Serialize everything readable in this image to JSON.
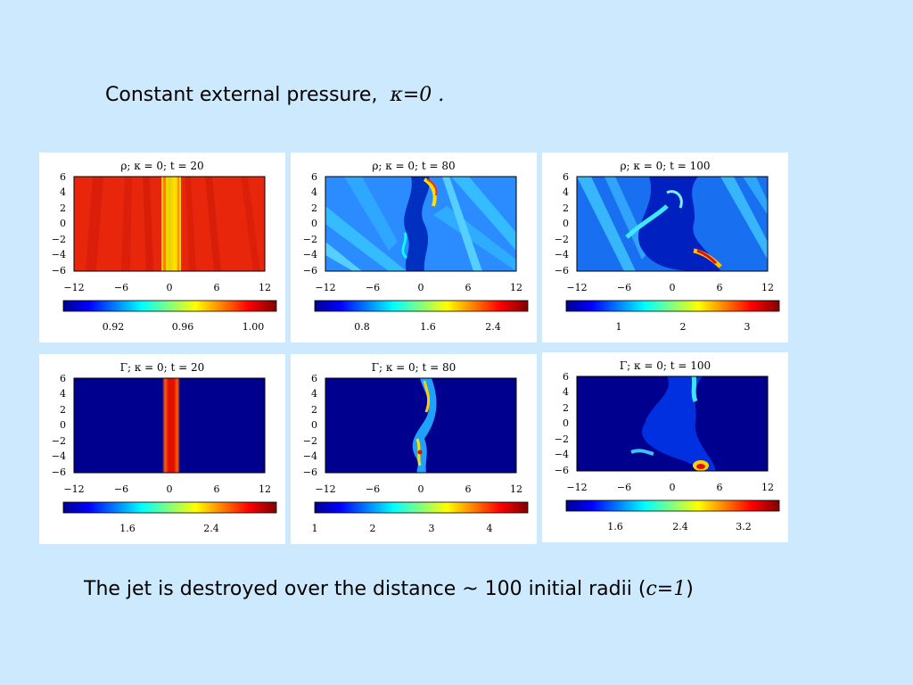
{
  "slide": {
    "title_text": "Constant external pressure,",
    "title_math": "κ=0 .",
    "footer_text": "The jet is destroyed over the distance  ~ 100 initial radii (",
    "footer_math": "c=1",
    "footer_close": ")"
  },
  "panels": [
    {
      "id": "rho-t20",
      "title": "ρ;  κ = 0;  t = 20",
      "quantity": "ρ",
      "t": 20,
      "y_ticks": [
        "6",
        "4",
        "2",
        "0",
        "−2",
        "−4",
        "−6"
      ],
      "x_ticks": [
        "−12",
        "−6",
        "0",
        "6",
        "12"
      ],
      "colorbar_ticks": [
        "0.92",
        "0.96",
        "1.00"
      ]
    },
    {
      "id": "rho-t80",
      "title": "ρ;  κ = 0;  t = 80",
      "quantity": "ρ",
      "t": 80,
      "y_ticks": [
        "6",
        "4",
        "2",
        "0",
        "−2",
        "−4",
        "−6"
      ],
      "x_ticks": [
        "−12",
        "−6",
        "0",
        "6",
        "12"
      ],
      "colorbar_ticks": [
        "0.8",
        "1.6",
        "2.4"
      ]
    },
    {
      "id": "rho-t100",
      "title": "ρ;  κ = 0;  t = 100",
      "quantity": "ρ",
      "t": 100,
      "y_ticks": [
        "6",
        "4",
        "2",
        "0",
        "−2",
        "−4",
        "−6"
      ],
      "x_ticks": [
        "−12",
        "−6",
        "0",
        "6",
        "12"
      ],
      "colorbar_ticks": [
        "1",
        "2",
        "3"
      ]
    },
    {
      "id": "gamma-t20",
      "title": "Γ;  κ = 0;  t = 20",
      "quantity": "Γ",
      "t": 20,
      "y_ticks": [
        "6",
        "4",
        "2",
        "0",
        "−2",
        "−4",
        "−6"
      ],
      "x_ticks": [
        "−12",
        "−6",
        "0",
        "6",
        "12"
      ],
      "colorbar_ticks": [
        "1.6",
        "2.4"
      ]
    },
    {
      "id": "gamma-t80",
      "title": "Γ;  κ = 0;  t = 80",
      "quantity": "Γ",
      "t": 80,
      "y_ticks": [
        "6",
        "4",
        "2",
        "0",
        "−2",
        "−4",
        "−6"
      ],
      "x_ticks": [
        "−12",
        "−6",
        "0",
        "6",
        "12"
      ],
      "colorbar_ticks": [
        "1",
        "2",
        "3",
        "4"
      ]
    },
    {
      "id": "gamma-t100",
      "title": "Γ;  κ = 0;  t = 100",
      "quantity": "Γ",
      "t": 100,
      "y_ticks": [
        "6",
        "4",
        "2",
        "0",
        "−2",
        "−4",
        "−6"
      ],
      "x_ticks": [
        "−12",
        "−6",
        "0",
        "6",
        "12"
      ],
      "colorbar_ticks": [
        "1.6",
        "2.4",
        "3.2"
      ]
    }
  ],
  "colormap": "jet",
  "colors": {
    "background": "#cce9fd",
    "jet_darkblue": "#00008f",
    "jet_blue": "#0040ff",
    "jet_cyan": "#00e0ff",
    "jet_yellow": "#ffee00",
    "jet_orange": "#ff8000",
    "jet_red": "#e8200a",
    "jet_darkred": "#800000"
  }
}
